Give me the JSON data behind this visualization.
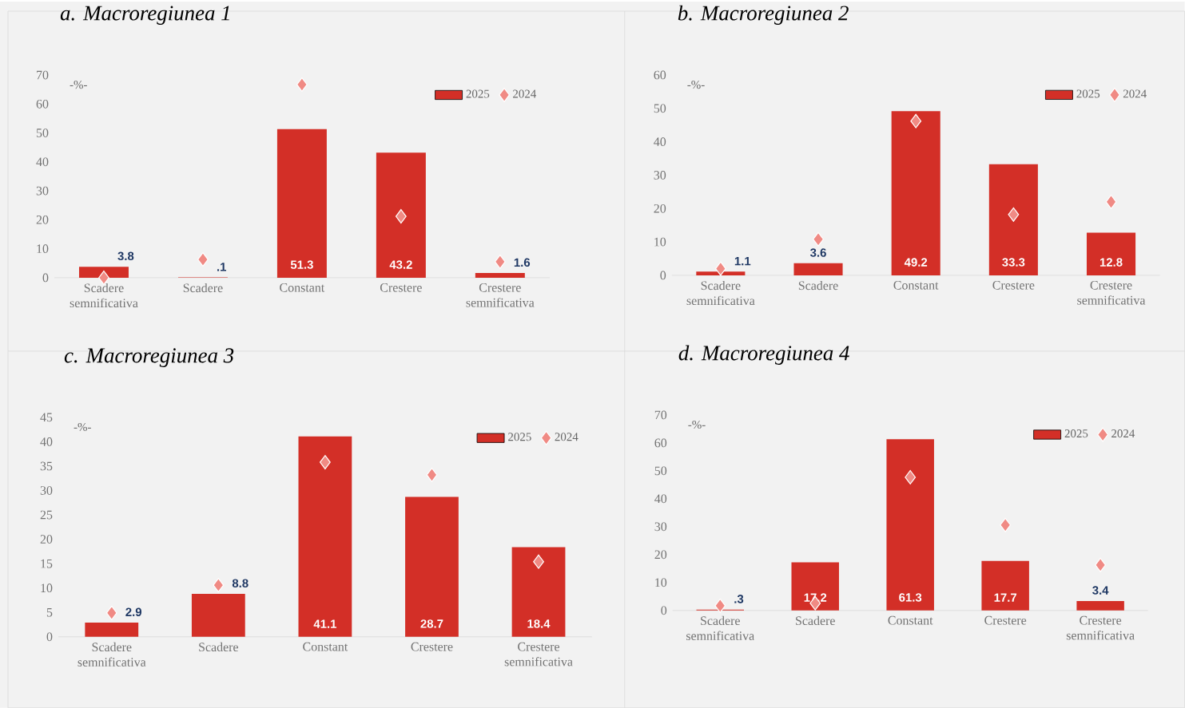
{
  "chart_data": [
    {
      "type": "bar",
      "title": "a. Macroregiunea 1",
      "ylabel": "-%-",
      "categories": [
        "Scadere semnificativa",
        "Scadere",
        "Constant",
        "Crestere",
        "Crestere semnificativa"
      ],
      "series": [
        {
          "name": "2025",
          "type": "bar",
          "color": "#d32f27",
          "values": [
            3.8,
            0.1,
            51.3,
            43.2,
            1.6
          ],
          "value_labels": [
            "3.8",
            ".1",
            "51.3",
            "43.2",
            "1.6"
          ]
        },
        {
          "name": "2024",
          "type": "scatter",
          "marker": "diamond",
          "color": "#f08a84",
          "values": [
            0,
            6.3,
            66.7,
            21.2,
            5.5
          ]
        }
      ],
      "ylim": [
        0,
        70
      ],
      "yticks": [
        0,
        10,
        20,
        30,
        40,
        50,
        60,
        70
      ],
      "legend": "top right"
    },
    {
      "type": "bar",
      "title": "b. Macroregiunea 2",
      "ylabel": "-%-",
      "categories": [
        "Scadere semnificativa",
        "Scadere",
        "Constant",
        "Crestere",
        "Crestere semnificativa"
      ],
      "series": [
        {
          "name": "2025",
          "type": "bar",
          "color": "#d32f27",
          "values": [
            1.1,
            3.6,
            49.2,
            33.3,
            12.8
          ],
          "value_labels": [
            "1.1",
            "3.6",
            "49.2",
            "33.3",
            "12.8"
          ]
        },
        {
          "name": "2024",
          "type": "scatter",
          "marker": "diamond",
          "color": "#f08a84",
          "values": [
            2,
            10.8,
            46.2,
            18.2,
            22
          ]
        }
      ],
      "ylim": [
        0,
        60
      ],
      "yticks": [
        0,
        10,
        20,
        30,
        40,
        50,
        60
      ],
      "legend": "top right"
    },
    {
      "type": "bar",
      "title": "c. Macroregiunea 3",
      "ylabel": "-%-",
      "categories": [
        "Scadere semnificativa",
        "Scadere",
        "Constant",
        "Crestere",
        "Crestere semnificativa"
      ],
      "series": [
        {
          "name": "2025",
          "type": "bar",
          "color": "#d32f27",
          "values": [
            2.9,
            8.8,
            41.1,
            28.7,
            18.4
          ],
          "value_labels": [
            "2.9",
            "8.8",
            "41.1",
            "28.7",
            "18.4"
          ]
        },
        {
          "name": "2024",
          "type": "scatter",
          "marker": "diamond",
          "color": "#f08a84",
          "values": [
            4.9,
            10.6,
            35.8,
            33.2,
            15.4
          ]
        }
      ],
      "ylim": [
        0,
        45
      ],
      "yticks": [
        0,
        5,
        10,
        15,
        20,
        25,
        30,
        35,
        40,
        45
      ],
      "legend": "top right"
    },
    {
      "type": "bar",
      "title": "d. Macroregiunea 4",
      "ylabel": "-%-",
      "categories": [
        "Scadere semnificativa",
        "Scadere",
        "Constant",
        "Crestere",
        "Crestere semnificativa"
      ],
      "series": [
        {
          "name": "2025",
          "type": "bar",
          "color": "#d32f27",
          "values": [
            0.3,
            17.2,
            61.3,
            17.7,
            3.4
          ],
          "value_labels": [
            ".3",
            "17.2",
            "61.3",
            "17.7",
            "3.4"
          ]
        },
        {
          "name": "2024",
          "type": "scatter",
          "marker": "diamond",
          "color": "#f08a84",
          "values": [
            1.7,
            2.6,
            47.7,
            30.6,
            16.3
          ]
        }
      ],
      "ylim": [
        0,
        70
      ],
      "yticks": [
        0,
        10,
        20,
        30,
        40,
        50,
        60,
        70
      ],
      "legend": "top right"
    }
  ]
}
